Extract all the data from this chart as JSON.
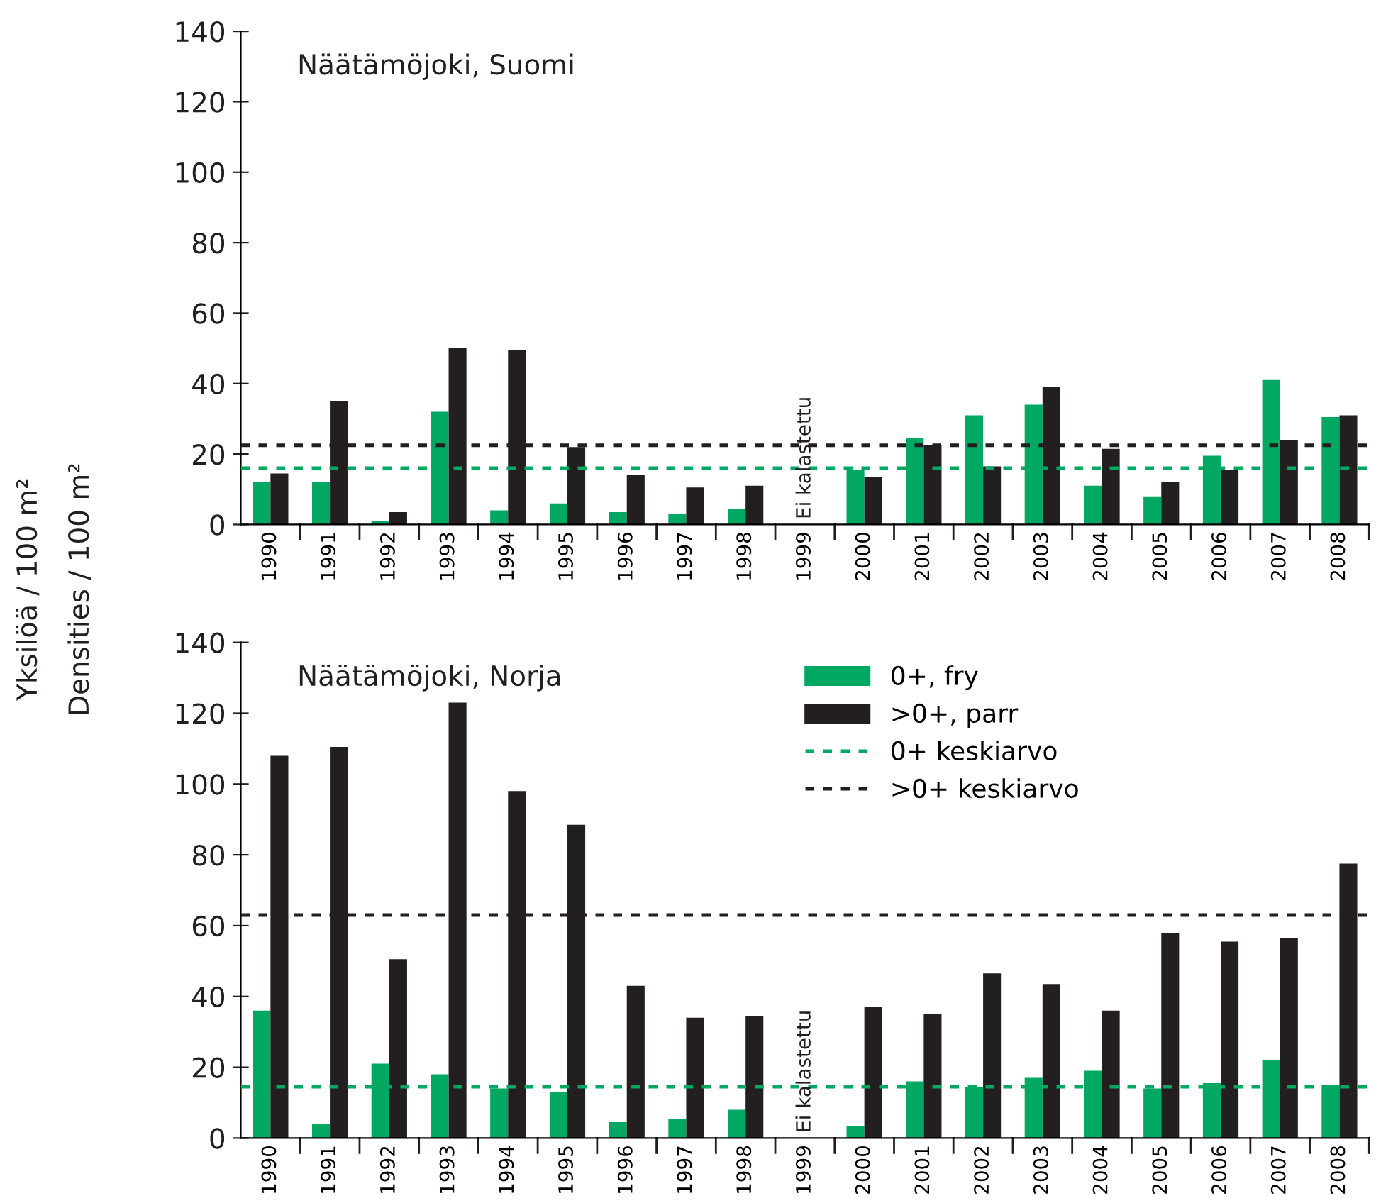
{
  "chart_data": [
    {
      "type": "bar",
      "title": "Näätämöjoki, Suomi",
      "ylabel": "Yksilöä / 100 m²\nDensities / 100 m²",
      "categories": [
        "1990",
        "1991",
        "1992",
        "1993",
        "1994",
        "1995",
        "1996",
        "1997",
        "1998",
        "1999",
        "2000",
        "2001",
        "2002",
        "2003",
        "2004",
        "2005",
        "2006",
        "2007",
        "2008"
      ],
      "series": [
        {
          "color": "#00a862",
          "values": [
            12,
            12,
            1,
            32,
            4,
            6,
            3.5,
            3,
            4.5,
            null,
            15.5,
            24.5,
            31,
            34,
            11,
            8,
            19.5,
            41,
            30.5
          ]
        },
        {
          "color": "#231f20",
          "values": [
            14.5,
            35,
            3.5,
            50,
            49.5,
            22,
            14,
            10.5,
            11,
            null,
            13.5,
            22.5,
            16.5,
            39,
            21.5,
            12,
            15.5,
            24,
            31
          ]
        }
      ],
      "ref_lines": [
        {
          "axis": "y",
          "value": 16,
          "color": "#00a862",
          "line_style": "dashed"
        },
        {
          "axis": "y",
          "value": 22.5,
          "color": "#231f20",
          "line_style": "dashed"
        }
      ],
      "annotations": [
        "Ei kalastettu"
      ],
      "ylim": [
        0,
        140
      ],
      "yticks": [
        0,
        20,
        40,
        60,
        80,
        100,
        120,
        140
      ],
      "grid": false,
      "legend": false
    },
    {
      "type": "bar",
      "title": "Näätämöjoki, Norja",
      "categories": [
        "1990",
        "1991",
        "1992",
        "1993",
        "1994",
        "1995",
        "1996",
        "1997",
        "1998",
        "1999",
        "2000",
        "2001",
        "2002",
        "2003",
        "2004",
        "2005",
        "2006",
        "2007",
        "2008"
      ],
      "series": [
        {
          "name": "0+, fry",
          "color": "#00a862",
          "values": [
            36,
            4,
            21,
            18,
            14,
            13,
            4.5,
            5.5,
            8,
            null,
            3.5,
            16,
            14.5,
            17,
            19,
            14,
            15.5,
            22,
            15
          ]
        },
        {
          "name": ">0+, parr",
          "color": "#231f20",
          "values": [
            108,
            110.5,
            50.5,
            123,
            98,
            88.5,
            43,
            34,
            34.5,
            null,
            37,
            35,
            46.5,
            43.5,
            36,
            58,
            55.5,
            56.5,
            77.5
          ]
        }
      ],
      "ref_lines": [
        {
          "axis": "y",
          "value": 14.5,
          "label": "0+ keskiarvo",
          "color": "#00a862",
          "line_style": "dashed"
        },
        {
          "axis": "y",
          "value": 63,
          "label": ">0+ keskiarvo",
          "color": "#231f20",
          "line_style": "dashed"
        }
      ],
      "annotations": [
        "Ei kalastettu"
      ],
      "ylim": [
        0,
        140
      ],
      "yticks": [
        0,
        20,
        40,
        60,
        80,
        100,
        120,
        140
      ],
      "grid": false,
      "legend": "top"
    }
  ]
}
